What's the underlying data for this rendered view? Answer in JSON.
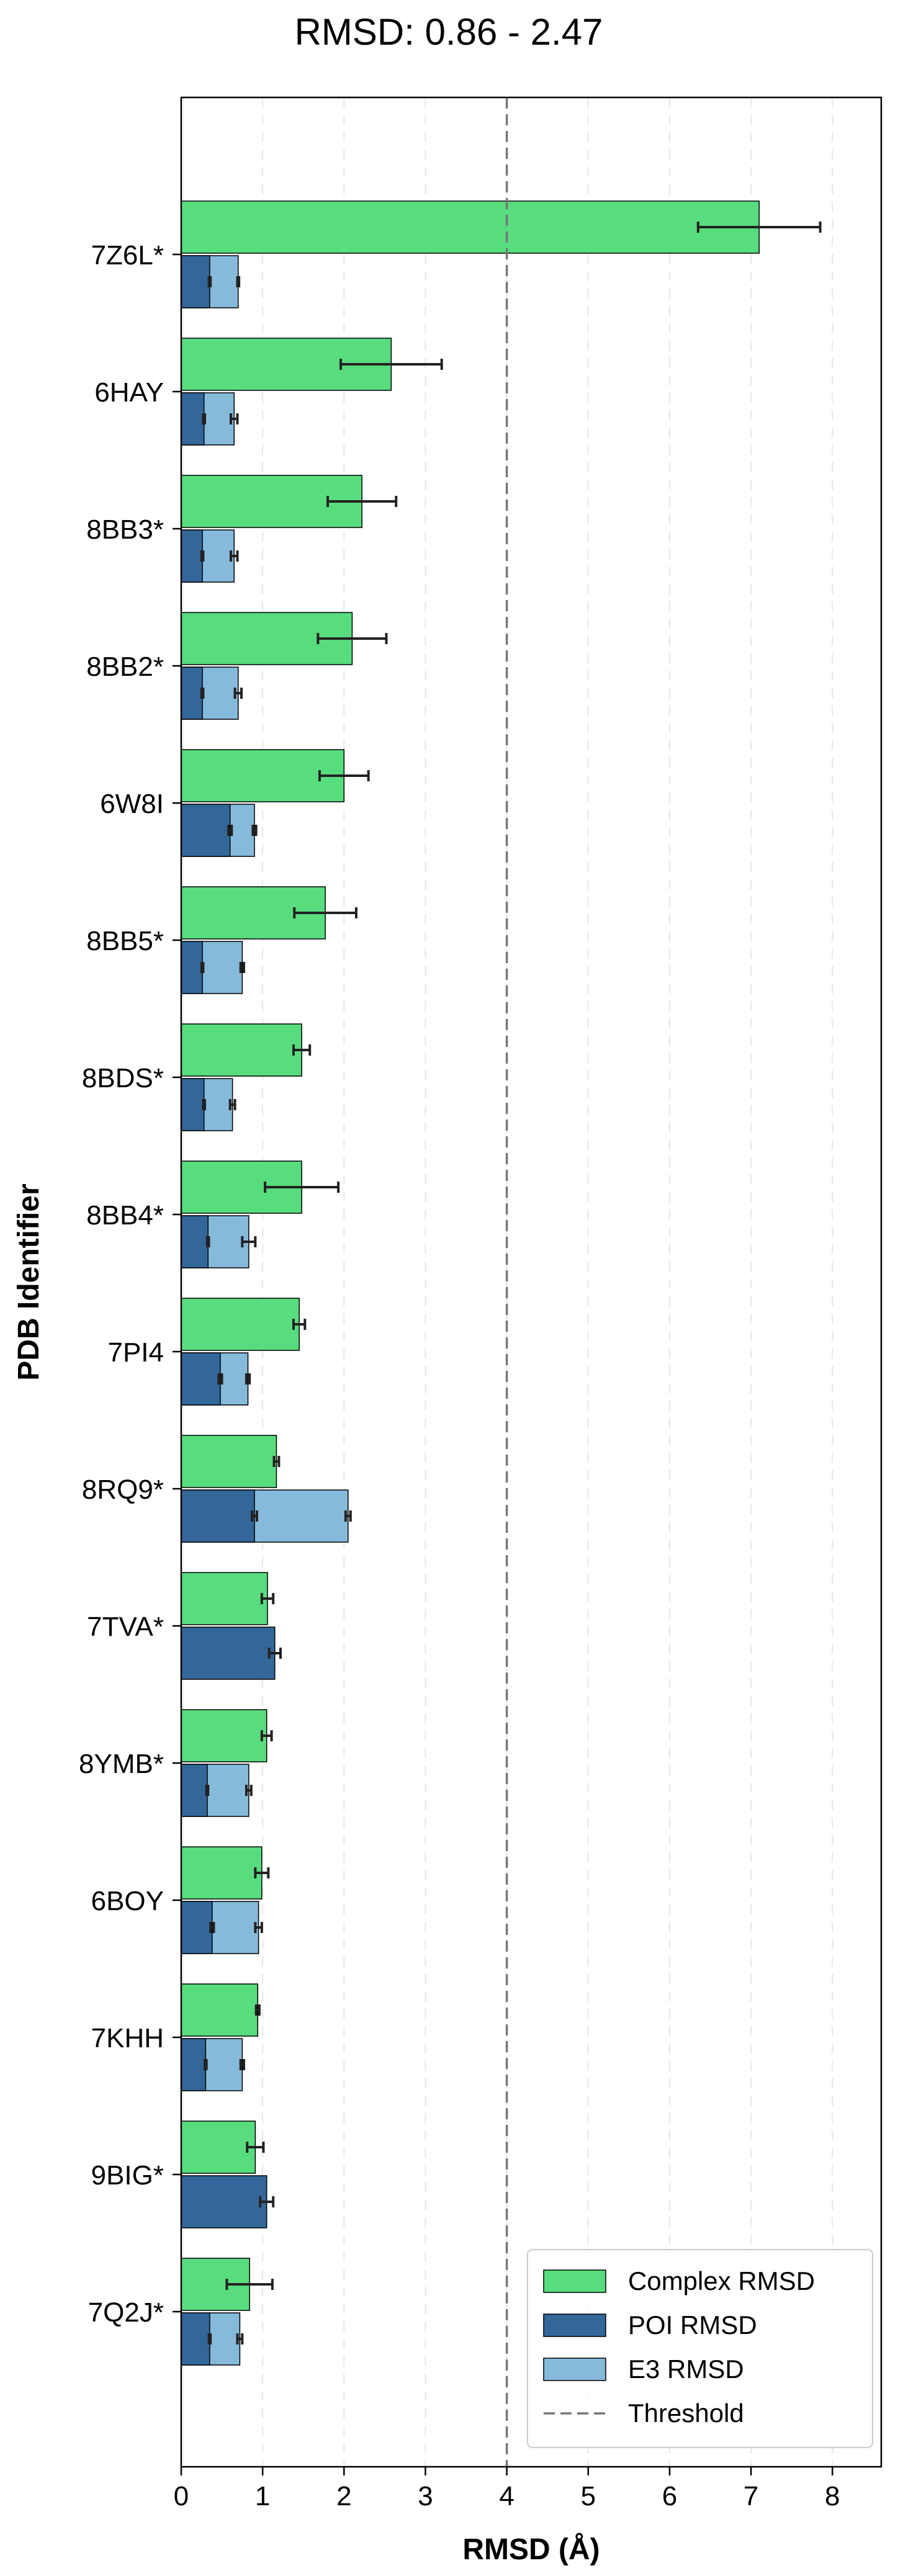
{
  "chart_data": {
    "type": "bar",
    "orientation": "horizontal",
    "title": "RMSD: 0.86 - 2.47",
    "xlabel": "RMSD (Å)",
    "ylabel": "PDB Identifier",
    "xlim": [
      0,
      8.6
    ],
    "xticks": [
      0,
      1,
      2,
      3,
      4,
      5,
      6,
      7,
      8
    ],
    "grid": "x-dashed",
    "threshold": {
      "label": "Threshold",
      "value": 4
    },
    "legend_position": "lower-right",
    "categories": [
      "7Z6L*",
      "6HAY",
      "8BB3*",
      "8BB2*",
      "6W8I",
      "8BB5*",
      "8BDS*",
      "8BB4*",
      "7PI4",
      "8RQ9*",
      "7TVA*",
      "8YMB*",
      "6BOY",
      "7KHH",
      "9BIG*",
      "7Q2J*"
    ],
    "series": [
      {
        "name": "Complex RMSD",
        "color": "#57dd7e",
        "values": [
          7.1,
          2.58,
          2.22,
          2.1,
          2.0,
          1.77,
          1.48,
          1.48,
          1.45,
          1.17,
          1.06,
          1.05,
          0.99,
          0.94,
          0.91,
          0.84
        ],
        "errors": [
          0.75,
          0.62,
          0.42,
          0.42,
          0.3,
          0.38,
          0.1,
          0.45,
          0.07,
          0.03,
          0.07,
          0.06,
          0.08,
          0.02,
          0.1,
          0.28
        ]
      },
      {
        "name": "POI RMSD",
        "color": "#336799",
        "values": [
          0.35,
          0.28,
          0.26,
          0.26,
          0.6,
          0.26,
          0.28,
          0.33,
          0.48,
          0.9,
          1.15,
          0.32,
          0.38,
          0.3,
          1.05,
          0.35
        ],
        "errors": [
          0.01,
          0.01,
          0.01,
          0.01,
          0.02,
          0.01,
          0.01,
          0.01,
          0.02,
          0.03,
          0.07,
          0.01,
          0.02,
          0.01,
          0.08,
          0.01
        ]
      },
      {
        "name": "E3 RMSD",
        "color": "#86badb",
        "values": [
          0.7,
          0.65,
          0.65,
          0.7,
          0.9,
          0.75,
          0.63,
          0.83,
          0.82,
          2.05,
          0.0,
          0.83,
          0.95,
          0.75,
          0.0,
          0.72
        ],
        "errors": [
          0.01,
          0.04,
          0.04,
          0.04,
          0.02,
          0.02,
          0.03,
          0.08,
          0.02,
          0.03,
          0.0,
          0.03,
          0.04,
          0.02,
          0.0,
          0.03
        ]
      }
    ]
  }
}
